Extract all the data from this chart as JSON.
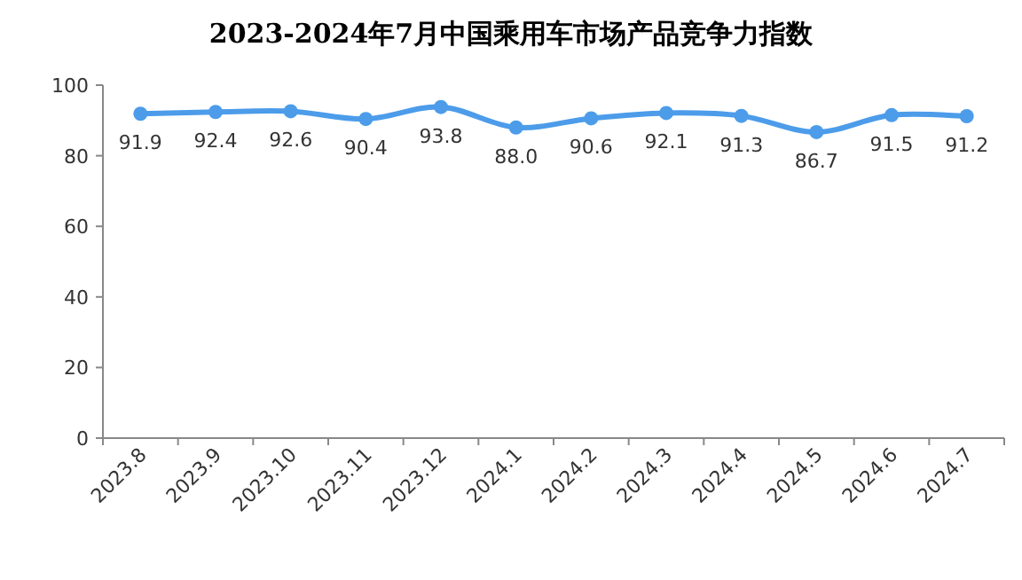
{
  "chart_data": {
    "type": "line",
    "title": "2023-2024年7月中国乘用车市场产品竞争力指数",
    "categories": [
      "2023.8",
      "2023.9",
      "2023.10",
      "2023.11",
      "2023.12",
      "2024.1",
      "2024.2",
      "2024.3",
      "2024.4",
      "2024.5",
      "2024.6",
      "2024.7"
    ],
    "values": [
      91.9,
      92.4,
      92.6,
      90.4,
      93.8,
      88.0,
      90.6,
      92.1,
      91.3,
      86.7,
      91.5,
      91.2
    ],
    "color": "#4c9cea",
    "ylim": [
      0,
      100
    ],
    "yticks": [
      0,
      20,
      40,
      60,
      80,
      100
    ],
    "value_labels": [
      "91.9",
      "92.4",
      "92.6",
      "90.4",
      "93.8",
      "88.0",
      "90.6",
      "92.1",
      "91.3",
      "86.7",
      "91.5",
      "91.2"
    ],
    "marker": "circle"
  }
}
